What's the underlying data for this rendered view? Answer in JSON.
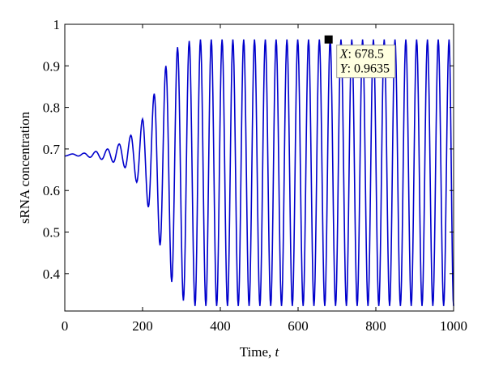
{
  "chart_data": {
    "type": "line",
    "title": "",
    "xlabel_text": "Time, ",
    "xlabel_var": "t",
    "ylabel": "sRNA concentration",
    "xlim": [
      0,
      1000
    ],
    "ylim": [
      0.31,
      1.0
    ],
    "xticks": [
      "0",
      "200",
      "400",
      "600",
      "800",
      "1000"
    ],
    "yticks": [
      "0.4",
      "0.5",
      "0.6",
      "0.7",
      "0.8",
      "0.9",
      "1"
    ],
    "grid": false,
    "line_color": "#0000cc",
    "series": [
      {
        "description_free": true,
        "x": [
          0,
          20,
          35,
          50,
          65,
          80,
          95,
          110,
          125,
          140,
          155,
          170,
          185,
          200,
          215,
          230,
          245,
          260,
          275,
          290,
          305,
          320,
          335,
          1000
        ],
        "y": [
          0.683,
          0.688,
          0.683,
          0.69,
          0.68,
          0.694,
          0.675,
          0.7,
          0.668,
          0.712,
          0.655,
          0.733,
          0.62,
          0.772,
          0.56,
          0.833,
          0.468,
          0.9,
          0.38,
          0.945,
          0.335,
          0.96,
          0.322,
          0.322
        ]
      }
    ],
    "oscillation": {
      "period": 27.8,
      "steady_max": 0.9635,
      "steady_min": 0.322,
      "start_x": 335
    },
    "datatip": {
      "x_label": "X",
      "x_value": "678.5",
      "y_label": "Y",
      "y_value": "0.9635",
      "x": 678.5,
      "y": 0.9635
    }
  }
}
